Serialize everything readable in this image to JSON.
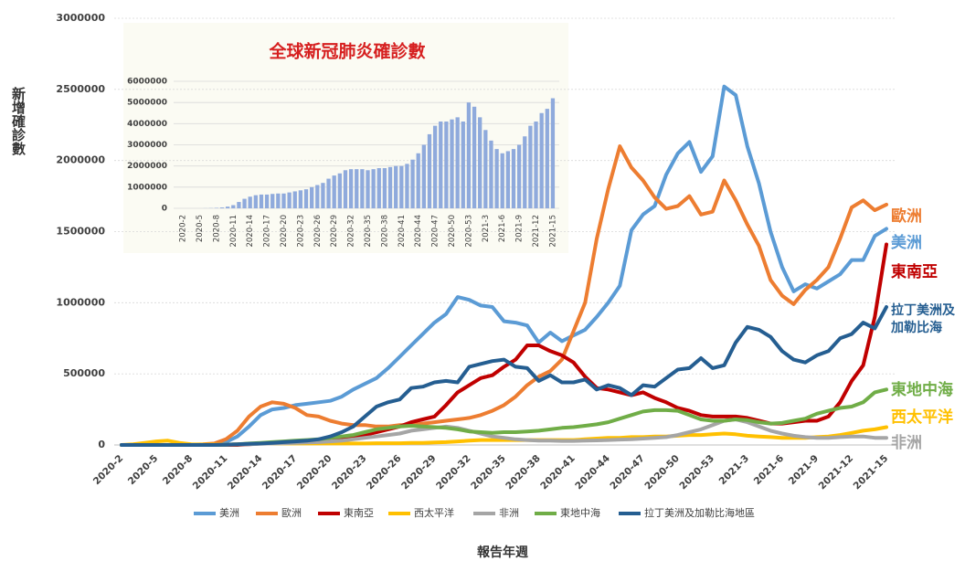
{
  "chart_data": [
    {
      "type": "line",
      "y_label": "新增確診數",
      "x_label": "報告年週",
      "categories": [
        "2020-2",
        null,
        null,
        "2020-5",
        null,
        null,
        "2020-8",
        null,
        null,
        "2020-11",
        null,
        null,
        "2020-14",
        null,
        null,
        "2020-17",
        null,
        null,
        "2020-20",
        null,
        null,
        "2020-23",
        null,
        null,
        "2020-26",
        null,
        null,
        "2020-29",
        null,
        null,
        "2020-32",
        null,
        null,
        "2020-35",
        null,
        null,
        "2020-38",
        null,
        null,
        "2020-41",
        null,
        null,
        "2020-44",
        null,
        null,
        "2020-47",
        null,
        null,
        "2020-50",
        null,
        null,
        "2020-53",
        null,
        null,
        "2021-3",
        null,
        null,
        "2021-6",
        null,
        null,
        "2021-9",
        null,
        null,
        "2021-12",
        null,
        null,
        "2021-15"
      ],
      "ylim": [
        0,
        3000000
      ],
      "yticks": [
        0,
        500000,
        1000000,
        1500000,
        2000000,
        2500000,
        3000000
      ],
      "grid": true,
      "legend": "bottom",
      "series": [
        {
          "name": "美洲",
          "end_label": [
            "美洲"
          ],
          "color": "#5b9bd5",
          "values": [
            0,
            0,
            0,
            0,
            0,
            0,
            0,
            2000,
            5000,
            20000,
            60000,
            130000,
            210000,
            250000,
            260000,
            280000,
            290000,
            300000,
            310000,
            340000,
            390000,
            430000,
            470000,
            540000,
            620000,
            700000,
            780000,
            860000,
            920000,
            1040000,
            1020000,
            980000,
            970000,
            870000,
            860000,
            840000,
            720000,
            790000,
            730000,
            770000,
            810000,
            900000,
            1000000,
            1120000,
            1510000,
            1620000,
            1680000,
            1900000,
            2050000,
            2130000,
            1920000,
            2030000,
            2520000,
            2460000,
            2100000,
            1840000,
            1500000,
            1250000,
            1080000,
            1130000,
            1100000,
            1150000,
            1200000,
            1300000,
            1300000,
            1470000,
            1520000
          ]
        },
        {
          "name": "歐洲",
          "end_label": [
            "歐洲"
          ],
          "color": "#ed7d31",
          "values": [
            0,
            0,
            0,
            0,
            0,
            0,
            2000,
            5000,
            10000,
            40000,
            100000,
            200000,
            270000,
            300000,
            290000,
            260000,
            210000,
            200000,
            170000,
            150000,
            140000,
            140000,
            130000,
            130000,
            140000,
            140000,
            150000,
            160000,
            170000,
            180000,
            190000,
            210000,
            240000,
            280000,
            340000,
            420000,
            480000,
            520000,
            600000,
            800000,
            1000000,
            1450000,
            1800000,
            2100000,
            1950000,
            1860000,
            1740000,
            1660000,
            1680000,
            1750000,
            1620000,
            1640000,
            1860000,
            1720000,
            1550000,
            1400000,
            1160000,
            1050000,
            990000,
            1090000,
            1160000,
            1250000,
            1450000,
            1670000,
            1720000,
            1650000,
            1690000
          ]
        },
        {
          "name": "東南亞",
          "end_label": [
            "東南亞"
          ],
          "color": "#c00000",
          "values": [
            0,
            0,
            0,
            0,
            0,
            0,
            0,
            0,
            0,
            0,
            0,
            5000,
            10000,
            15000,
            20000,
            25000,
            30000,
            35000,
            40000,
            50000,
            55000,
            70000,
            90000,
            110000,
            130000,
            160000,
            180000,
            200000,
            280000,
            370000,
            420000,
            470000,
            490000,
            550000,
            600000,
            700000,
            700000,
            660000,
            630000,
            580000,
            480000,
            400000,
            390000,
            370000,
            350000,
            370000,
            330000,
            300000,
            260000,
            240000,
            210000,
            200000,
            200000,
            200000,
            190000,
            170000,
            150000,
            150000,
            160000,
            170000,
            170000,
            200000,
            300000,
            450000,
            560000,
            900000,
            1410000
          ]
        },
        {
          "name": "西太平洋",
          "end_label": [
            "西太平洋"
          ],
          "color": "#ffc000",
          "values": [
            0,
            5000,
            15000,
            25000,
            30000,
            15000,
            5000,
            3000,
            3000,
            3000,
            5000,
            8000,
            10000,
            10000,
            10000,
            10000,
            10000,
            10000,
            10000,
            10000,
            10000,
            10000,
            12000,
            12000,
            12000,
            15000,
            15000,
            18000,
            20000,
            25000,
            30000,
            35000,
            35000,
            35000,
            35000,
            35000,
            35000,
            35000,
            35000,
            35000,
            40000,
            45000,
            50000,
            50000,
            55000,
            55000,
            60000,
            60000,
            65000,
            70000,
            70000,
            75000,
            80000,
            75000,
            65000,
            60000,
            55000,
            50000,
            50000,
            50000,
            55000,
            60000,
            70000,
            85000,
            100000,
            110000,
            125000
          ]
        },
        {
          "name": "非洲",
          "end_label": [
            "非洲"
          ],
          "color": "#a5a5a5",
          "values": [
            0,
            0,
            0,
            0,
            0,
            0,
            0,
            0,
            0,
            2000,
            3000,
            5000,
            8000,
            10000,
            12000,
            15000,
            18000,
            20000,
            25000,
            30000,
            40000,
            50000,
            60000,
            70000,
            80000,
            100000,
            110000,
            120000,
            130000,
            120000,
            100000,
            80000,
            60000,
            50000,
            40000,
            35000,
            30000,
            30000,
            28000,
            28000,
            30000,
            32000,
            35000,
            38000,
            40000,
            45000,
            50000,
            55000,
            70000,
            90000,
            110000,
            140000,
            170000,
            180000,
            160000,
            130000,
            100000,
            80000,
            65000,
            55000,
            50000,
            50000,
            55000,
            60000,
            60000,
            50000,
            50000
          ]
        },
        {
          "name": "東地中海",
          "end_label": [
            "東地中海"
          ],
          "color": "#70ad47",
          "values": [
            0,
            0,
            0,
            0,
            0,
            0,
            0,
            0,
            0,
            2000,
            5000,
            10000,
            15000,
            20000,
            25000,
            30000,
            35000,
            40000,
            50000,
            60000,
            70000,
            90000,
            110000,
            120000,
            130000,
            135000,
            130000,
            125000,
            120000,
            110000,
            95000,
            90000,
            85000,
            90000,
            90000,
            95000,
            100000,
            110000,
            120000,
            125000,
            135000,
            145000,
            160000,
            185000,
            210000,
            235000,
            245000,
            245000,
            240000,
            210000,
            180000,
            170000,
            170000,
            180000,
            175000,
            160000,
            150000,
            155000,
            170000,
            185000,
            220000,
            240000,
            260000,
            270000,
            300000,
            370000,
            390000
          ]
        },
        {
          "name": "拉丁美洲及加勒比海地區",
          "end_label": [
            "拉丁美洲及",
            "加勒比海"
          ],
          "color": "#255e91",
          "values": [
            0,
            0,
            0,
            0,
            0,
            0,
            0,
            0,
            0,
            2000,
            5000,
            8000,
            10000,
            15000,
            20000,
            25000,
            30000,
            40000,
            60000,
            90000,
            130000,
            200000,
            270000,
            300000,
            320000,
            400000,
            410000,
            440000,
            450000,
            440000,
            550000,
            570000,
            590000,
            600000,
            550000,
            540000,
            450000,
            490000,
            440000,
            440000,
            460000,
            390000,
            420000,
            400000,
            350000,
            420000,
            410000,
            470000,
            530000,
            540000,
            610000,
            540000,
            560000,
            720000,
            830000,
            810000,
            760000,
            660000,
            600000,
            580000,
            630000,
            660000,
            750000,
            780000,
            860000,
            820000,
            970000
          ]
        }
      ]
    },
    {
      "type": "bar",
      "title": "全球新冠肺炎確診數",
      "categories": [
        "2020-2",
        null,
        null,
        "2020-5",
        null,
        null,
        "2020-8",
        null,
        null,
        "2020-11",
        null,
        null,
        "2020-14",
        null,
        null,
        "2020-17",
        null,
        null,
        "2020-20",
        null,
        null,
        "2020-23",
        null,
        null,
        "2020-26",
        null,
        null,
        "2020-29",
        null,
        null,
        "2020-32",
        null,
        null,
        "2020-35",
        null,
        null,
        "2020-38",
        null,
        null,
        "2020-41",
        null,
        null,
        "2020-44",
        null,
        null,
        "2020-47",
        null,
        null,
        "2020-50",
        null,
        null,
        "2020-53",
        null,
        null,
        "2021-3",
        null,
        null,
        "2021-6",
        null,
        null,
        "2021-9",
        null,
        null,
        "2021-12",
        null,
        null,
        "2021-15"
      ],
      "values": [
        0,
        0,
        0,
        0,
        5000,
        10000,
        20000,
        40000,
        80000,
        150000,
        300000,
        450000,
        550000,
        620000,
        650000,
        650000,
        680000,
        700000,
        700000,
        750000,
        800000,
        850000,
        900000,
        1000000,
        1100000,
        1200000,
        1400000,
        1550000,
        1650000,
        1800000,
        1850000,
        1850000,
        1850000,
        1800000,
        1850000,
        1900000,
        1900000,
        1950000,
        2000000,
        2000000,
        2100000,
        2300000,
        2600000,
        3000000,
        3500000,
        3900000,
        4100000,
        4100000,
        4200000,
        4300000,
        4100000,
        5000000,
        4800000,
        4300000,
        3700000,
        3200000,
        2800000,
        2600000,
        2700000,
        2800000,
        3000000,
        3400000,
        3900000,
        4100000,
        4500000,
        4700000,
        5200000
      ],
      "color": "#8faadc",
      "ylim": [
        0,
        6000000
      ],
      "yticks": [
        0,
        1000000,
        2000000,
        3000000,
        4000000,
        5000000,
        6000000
      ],
      "grid": true
    }
  ]
}
